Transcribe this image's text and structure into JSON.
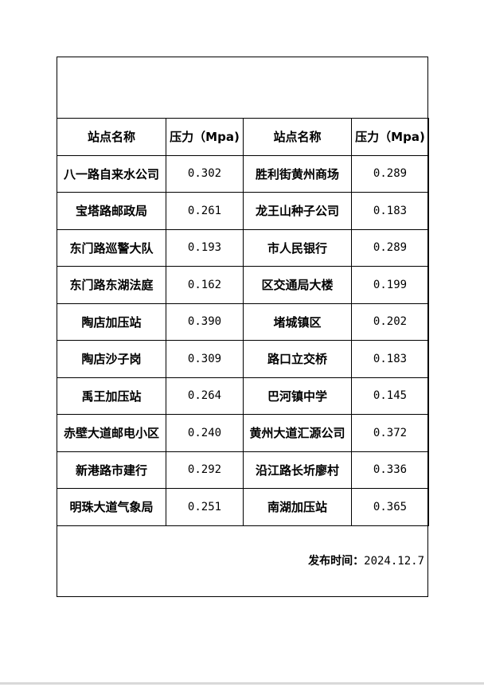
{
  "table": {
    "headers": [
      "站点名称",
      "压力（Mpa)",
      "站点名称",
      "压力（Mpa)"
    ],
    "rows": [
      [
        "八一路自来水公司",
        "0.302",
        "胜利街黄州商场",
        "0.289"
      ],
      [
        "宝塔路邮政局",
        "0.261",
        "龙王山种子公司",
        "0.183"
      ],
      [
        "东门路巡警大队",
        "0.193",
        "市人民银行",
        "0.289"
      ],
      [
        "东门路东湖法庭",
        "0.162",
        "区交通局大楼",
        "0.199"
      ],
      [
        "陶店加压站",
        "0.390",
        "堵城镇区",
        "0.202"
      ],
      [
        "陶店沙子岗",
        "0.309",
        "路口立交桥",
        "0.183"
      ],
      [
        "禹王加压站",
        "0.264",
        "巴河镇中学",
        "0.145"
      ],
      [
        "赤壁大道邮电小区",
        "0.240",
        "黄州大道汇源公司",
        "0.372"
      ],
      [
        "新港路市建行",
        "0.292",
        "沿江路长圻廖村",
        "0.336"
      ],
      [
        "明珠大道气象局",
        "0.251",
        "南湖加压站",
        "0.365"
      ]
    ]
  },
  "footer": {
    "label": "发布时间：",
    "date": "2024.12.7"
  }
}
